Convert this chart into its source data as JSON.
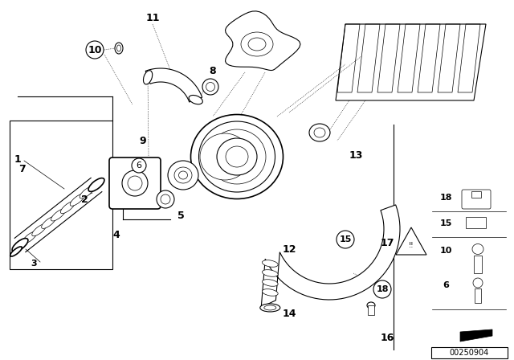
{
  "bg_color": "#ffffff",
  "line_color": "#000000",
  "part_number": "00250904",
  "gray_color": "#888888",
  "figsize": [
    6.4,
    4.48
  ],
  "dpi": 100
}
